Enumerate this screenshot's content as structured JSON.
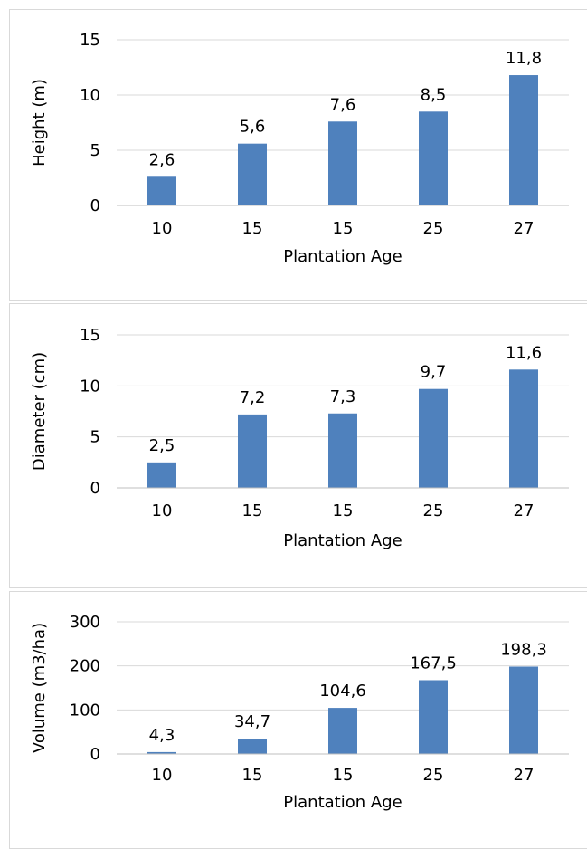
{
  "chart_data": [
    {
      "type": "bar",
      "categories": [
        "10",
        "15",
        "15",
        "25",
        "27"
      ],
      "values": [
        2.6,
        5.6,
        7.6,
        8.5,
        11.8
      ],
      "value_labels": [
        "2,6",
        "5,6",
        "7,6",
        "8,5",
        "11,8"
      ],
      "xlabel": "Plantation Age",
      "ylabel": "Height (m)",
      "ylim": [
        0,
        15
      ],
      "yticks": [
        "0",
        "5",
        "10",
        "15"
      ],
      "ytick_values": [
        0,
        5,
        10,
        15
      ],
      "grid": true,
      "color": "#4f81bd"
    },
    {
      "type": "bar",
      "categories": [
        "10",
        "15",
        "15",
        "25",
        "27"
      ],
      "values": [
        2.5,
        7.2,
        7.3,
        9.7,
        11.6
      ],
      "value_labels": [
        "2,5",
        "7,2",
        "7,3",
        "9,7",
        "11,6"
      ],
      "xlabel": "Plantation Age",
      "ylabel": "Diameter (cm)",
      "ylim": [
        0,
        15
      ],
      "yticks": [
        "0",
        "5",
        "10",
        "15"
      ],
      "ytick_values": [
        0,
        5,
        10,
        15
      ],
      "grid": true,
      "color": "#4f81bd"
    },
    {
      "type": "bar",
      "categories": [
        "10",
        "15",
        "15",
        "25",
        "27"
      ],
      "values": [
        4.3,
        34.7,
        104.6,
        167.5,
        198.3
      ],
      "value_labels": [
        "4,3",
        "34,7",
        "104,6",
        "167,5",
        "198,3"
      ],
      "xlabel": "Plantation Age",
      "ylabel": "Volume (m3/ha)",
      "ylim": [
        0,
        300
      ],
      "yticks": [
        "0",
        "100",
        "200",
        "300"
      ],
      "ytick_values": [
        0,
        100,
        200,
        300
      ],
      "grid": true,
      "color": "#4f81bd"
    }
  ]
}
